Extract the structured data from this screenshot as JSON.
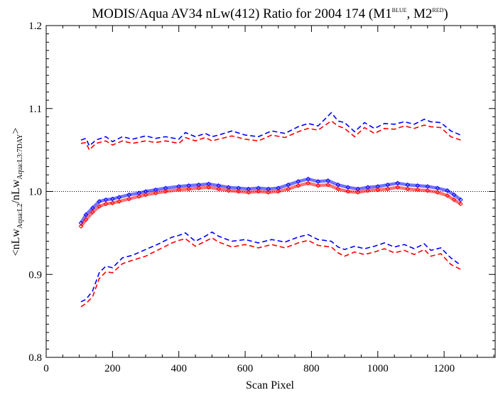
{
  "chart_data": {
    "type": "line",
    "title": {
      "main": "MODIS/Aqua AV34 nLw(412) Ratio for 2004 174 (M1",
      "sup1": "BLUE",
      "mid": ", M2",
      "sup2": "RED",
      "end": ")"
    },
    "xlabel": "Scan Pixel",
    "ylabel": {
      "p1": "<nLw",
      "s1": "Aqua:L2",
      "p2": "/nLw",
      "s2": "Aqua:L3:7DAY",
      "p3": ">"
    },
    "xlim": [
      0,
      1354
    ],
    "ylim": [
      0.8,
      1.2
    ],
    "x_ticks": [
      0,
      200,
      400,
      600,
      800,
      1000,
      1200
    ],
    "y_ticks": [
      0.8,
      0.9,
      1.0,
      1.1,
      1.2
    ],
    "y_tick_labels": [
      "0.8",
      "0.9",
      "1.0",
      "1.1",
      "1.2"
    ],
    "reference_line": 1.0,
    "grid": false,
    "series": [
      {
        "role": "M1 mean",
        "color": "#0000ff",
        "style": "diamonds",
        "x": [
          105,
          120,
          140,
          160,
          180,
          200,
          220,
          250,
          280,
          300,
          330,
          360,
          400,
          430,
          460,
          490,
          520,
          550,
          580,
          610,
          640,
          670,
          700,
          730,
          760,
          790,
          820,
          850,
          880,
          910,
          940,
          970,
          1000,
          1030,
          1060,
          1090,
          1120,
          1150,
          1180,
          1210,
          1230,
          1250
        ],
        "y": [
          0.962,
          0.972,
          0.98,
          0.988,
          0.99,
          0.991,
          0.993,
          0.996,
          0.998,
          1.0,
          1.002,
          1.004,
          1.006,
          1.007,
          1.008,
          1.009,
          1.007,
          1.005,
          1.004,
          1.003,
          1.004,
          1.003,
          1.004,
          1.008,
          1.012,
          1.015,
          1.012,
          1.013,
          1.008,
          1.005,
          1.003,
          1.005,
          1.006,
          1.008,
          1.01,
          1.008,
          1.007,
          1.006,
          1.004,
          1.001,
          0.996,
          0.99
        ]
      },
      {
        "role": "M2 mean",
        "color": "#ff0000",
        "style": "diamonds",
        "x": [
          105,
          120,
          140,
          160,
          180,
          200,
          220,
          250,
          280,
          300,
          330,
          360,
          400,
          430,
          460,
          490,
          520,
          550,
          580,
          610,
          640,
          670,
          700,
          730,
          760,
          790,
          820,
          850,
          880,
          910,
          940,
          970,
          1000,
          1030,
          1060,
          1090,
          1120,
          1150,
          1180,
          1210,
          1230,
          1250
        ],
        "y": [
          0.958,
          0.966,
          0.975,
          0.982,
          0.985,
          0.986,
          0.988,
          0.991,
          0.994,
          0.996,
          0.998,
          1.0,
          1.002,
          1.003,
          1.004,
          1.005,
          1.003,
          1.001,
          1.0,
          0.999,
          1.0,
          0.999,
          1.0,
          1.003,
          1.007,
          1.01,
          1.007,
          1.008,
          1.003,
          1.0,
          0.999,
          1.001,
          1.002,
          1.003,
          1.005,
          1.003,
          1.002,
          1.001,
          0.999,
          0.995,
          0.99,
          0.985
        ]
      },
      {
        "role": "M1 upper",
        "color": "#0000ff",
        "style": "dashed",
        "x": [
          105,
          120,
          130,
          150,
          180,
          200,
          230,
          260,
          300,
          330,
          360,
          400,
          420,
          450,
          480,
          500,
          520,
          560,
          600,
          640,
          680,
          720,
          760,
          790,
          820,
          860,
          880,
          900,
          930,
          960,
          990,
          1020,
          1050,
          1080,
          1110,
          1140,
          1160,
          1190,
          1220,
          1250
        ],
        "y": [
          1.062,
          1.064,
          1.055,
          1.062,
          1.066,
          1.06,
          1.066,
          1.063,
          1.067,
          1.064,
          1.066,
          1.063,
          1.071,
          1.066,
          1.07,
          1.066,
          1.068,
          1.073,
          1.068,
          1.066,
          1.073,
          1.07,
          1.078,
          1.082,
          1.079,
          1.095,
          1.085,
          1.083,
          1.072,
          1.083,
          1.076,
          1.082,
          1.081,
          1.084,
          1.081,
          1.087,
          1.084,
          1.083,
          1.073,
          1.068
        ]
      },
      {
        "role": "M2 upper",
        "color": "#ff0000",
        "style": "dashed",
        "x": [
          105,
          120,
          130,
          150,
          180,
          200,
          230,
          260,
          300,
          330,
          360,
          400,
          420,
          450,
          480,
          500,
          520,
          560,
          600,
          640,
          680,
          720,
          760,
          790,
          820,
          860,
          880,
          900,
          930,
          960,
          990,
          1020,
          1050,
          1080,
          1110,
          1140,
          1160,
          1190,
          1220,
          1250
        ],
        "y": [
          1.058,
          1.059,
          1.05,
          1.058,
          1.061,
          1.056,
          1.061,
          1.058,
          1.061,
          1.059,
          1.061,
          1.058,
          1.065,
          1.061,
          1.065,
          1.061,
          1.063,
          1.067,
          1.063,
          1.061,
          1.068,
          1.065,
          1.072,
          1.076,
          1.074,
          1.085,
          1.079,
          1.076,
          1.066,
          1.077,
          1.07,
          1.076,
          1.075,
          1.079,
          1.076,
          1.08,
          1.078,
          1.077,
          1.066,
          1.062
        ]
      },
      {
        "role": "M1 lower",
        "color": "#0000ff",
        "style": "dashed",
        "x": [
          105,
          120,
          140,
          160,
          180,
          200,
          230,
          260,
          300,
          340,
          380,
          400,
          420,
          450,
          480,
          500,
          520,
          560,
          600,
          640,
          680,
          720,
          760,
          790,
          820,
          860,
          880,
          900,
          930,
          960,
          990,
          1020,
          1050,
          1080,
          1110,
          1140,
          1160,
          1190,
          1220,
          1250
        ],
        "y": [
          0.867,
          0.87,
          0.88,
          0.902,
          0.91,
          0.908,
          0.92,
          0.923,
          0.93,
          0.937,
          0.945,
          0.947,
          0.95,
          0.94,
          0.946,
          0.951,
          0.946,
          0.94,
          0.942,
          0.938,
          0.942,
          0.939,
          0.945,
          0.948,
          0.942,
          0.94,
          0.933,
          0.93,
          0.934,
          0.931,
          0.934,
          0.938,
          0.933,
          0.936,
          0.931,
          0.937,
          0.929,
          0.932,
          0.92,
          0.911
        ]
      },
      {
        "role": "M2 lower",
        "color": "#ff0000",
        "style": "dashed",
        "x": [
          105,
          120,
          140,
          160,
          180,
          200,
          230,
          260,
          300,
          340,
          380,
          400,
          420,
          450,
          480,
          500,
          520,
          560,
          600,
          640,
          680,
          720,
          760,
          790,
          820,
          860,
          880,
          900,
          930,
          960,
          990,
          1020,
          1050,
          1080,
          1110,
          1140,
          1160,
          1190,
          1220,
          1250
        ],
        "y": [
          0.861,
          0.865,
          0.873,
          0.895,
          0.903,
          0.902,
          0.913,
          0.917,
          0.922,
          0.93,
          0.938,
          0.941,
          0.943,
          0.934,
          0.94,
          0.944,
          0.939,
          0.933,
          0.936,
          0.932,
          0.936,
          0.932,
          0.938,
          0.941,
          0.935,
          0.933,
          0.926,
          0.922,
          0.927,
          0.924,
          0.927,
          0.931,
          0.926,
          0.929,
          0.924,
          0.93,
          0.922,
          0.925,
          0.912,
          0.906
        ]
      }
    ]
  }
}
